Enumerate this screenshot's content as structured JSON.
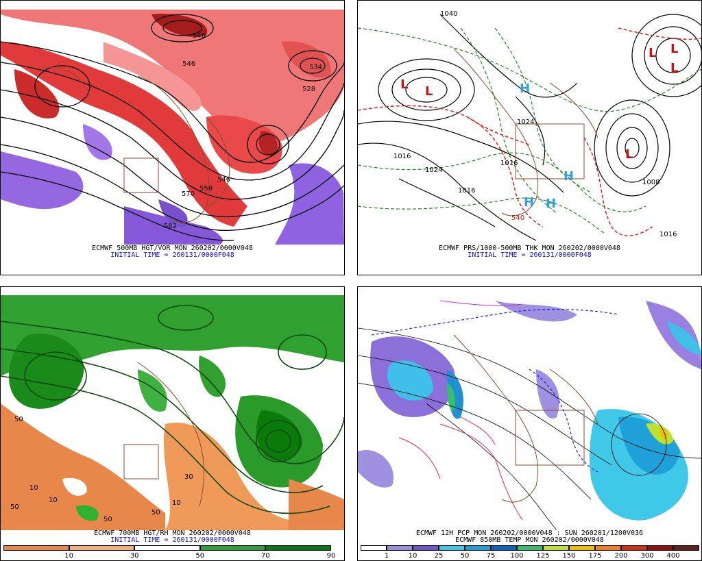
{
  "panels": {
    "tl": {
      "line1": "ECMWF 500MB HGT/VOR MON 260202/0000V048",
      "line2": "INITIAL TIME = 260131/0000F048",
      "labels": [
        "546",
        "534",
        "546",
        "528",
        "546",
        "570",
        "582",
        "558"
      ]
    },
    "tr": {
      "line1": "ECMWF PRS/1000-500MB THK MON 260202/0000V048",
      "line2": "INITIAL TIME = 260131/0000F048",
      "labels": [
        "1040",
        "1016",
        "1024",
        "1016",
        "1024",
        "1016",
        "1008",
        "1016",
        "540"
      ],
      "lows": [
        "L",
        "L",
        "L",
        "L",
        "L",
        "L"
      ],
      "highs": [
        "H",
        "H",
        "H",
        "H"
      ]
    },
    "bl": {
      "line1": "ECMWF 700MB HGT/RH MON 260202/0000V048",
      "line2": "INITIAL TIME = 260131/0000F048",
      "legend": {
        "colors": [
          "#e8874a",
          "#f4b07a",
          "#ffffff",
          "#30a030",
          "#0a7a0a"
        ],
        "ticks": [
          "10",
          "30",
          "50",
          "70",
          "90"
        ]
      },
      "labels": [
        "10",
        "50",
        "10",
        "50",
        "50",
        "10",
        "30",
        "50"
      ]
    },
    "br": {
      "line1": "ECMWF 12H PCP MON 260202/0000V048 : SUN 260201/1200V036",
      "line2": "ECMWF 850MB TEMP MON 260202/0000V048",
      "legend": {
        "colors": [
          "#ffffff",
          "#a090e0",
          "#7058c8",
          "#40c8e8",
          "#20a0d8",
          "#1060c0",
          "#30c070",
          "#c0e030",
          "#f0c000",
          "#f08020",
          "#d03010",
          "#901010",
          "#602020"
        ],
        "ticks": [
          "1",
          "10",
          "25",
          "50",
          "75",
          "100",
          "125",
          "150",
          "175",
          "200",
          "300",
          "400"
        ]
      }
    }
  }
}
